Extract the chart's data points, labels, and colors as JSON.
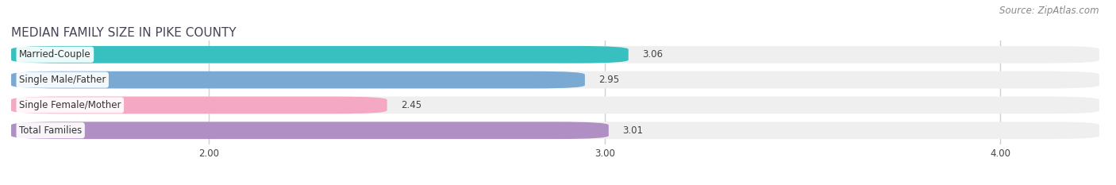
{
  "title": "MEDIAN FAMILY SIZE IN PIKE COUNTY",
  "source": "Source: ZipAtlas.com",
  "categories": [
    "Married-Couple",
    "Single Male/Father",
    "Single Female/Mother",
    "Total Families"
  ],
  "values": [
    3.06,
    2.95,
    2.45,
    3.01
  ],
  "bar_colors": [
    "#38bfbf",
    "#7aaad4",
    "#f4a8c4",
    "#b090c4"
  ],
  "bar_bg_colors": [
    "#efefef",
    "#efefef",
    "#efefef",
    "#efefef"
  ],
  "xlim_left": 1.5,
  "xlim_right": 4.25,
  "xstart": 1.5,
  "xticks": [
    2.0,
    3.0,
    4.0
  ],
  "xtick_labels": [
    "2.00",
    "3.00",
    "4.00"
  ],
  "label_fontsize": 8.5,
  "title_fontsize": 11,
  "value_fontsize": 8.5,
  "source_fontsize": 8.5,
  "bar_height": 0.68,
  "background_color": "#ffffff",
  "grid_color": "#d0d0d0",
  "text_color": "#444444",
  "title_color": "#444455"
}
